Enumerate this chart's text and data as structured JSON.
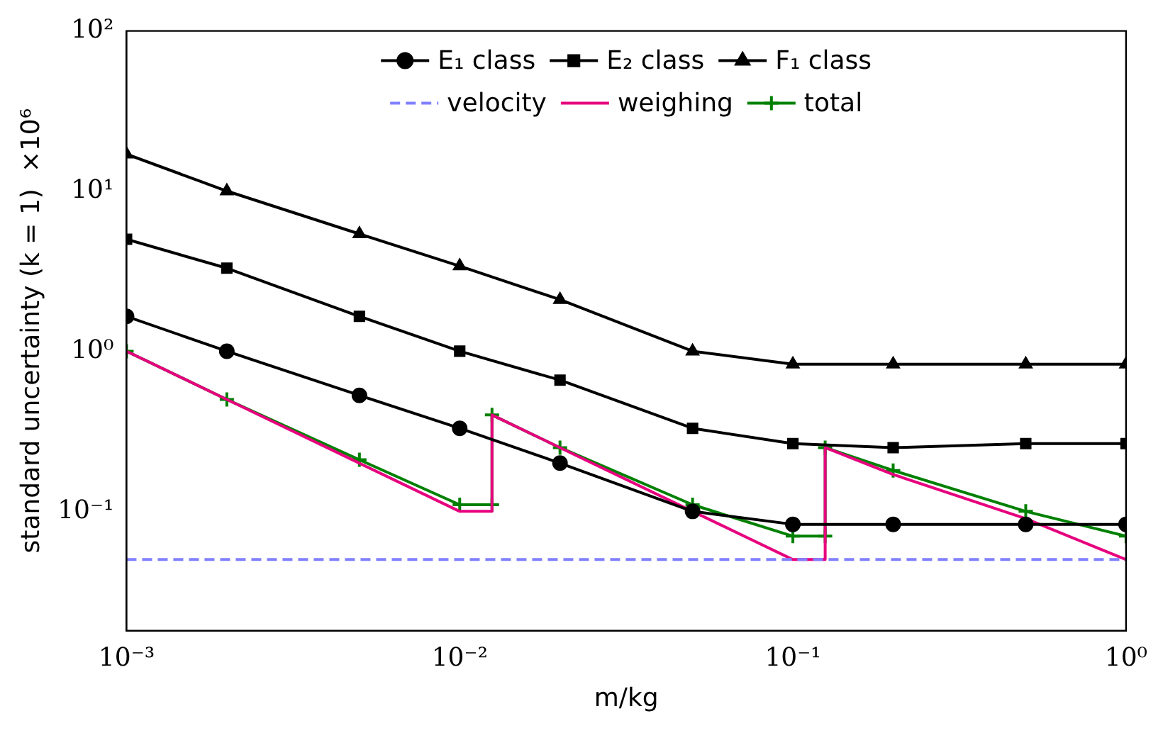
{
  "chart_data": {
    "type": "line",
    "xlabel": "m/kg",
    "ylabel": "standard uncertainty (k = 1)  ×10⁶",
    "log": "xy",
    "xlim": [
      0.001,
      1
    ],
    "ylim": [
      0.018,
      100
    ],
    "xticks": [
      {
        "value": 0.001,
        "label": "10⁻³"
      },
      {
        "value": 0.01,
        "label": "10⁻²"
      },
      {
        "value": 0.1,
        "label": "10⁻¹"
      },
      {
        "value": 1,
        "label": "10⁰"
      }
    ],
    "yticks": [
      {
        "value": 0.1,
        "label": "10⁻¹"
      },
      {
        "value": 1,
        "label": "10⁰"
      },
      {
        "value": 10,
        "label": "10¹"
      },
      {
        "value": 100,
        "label": "10²"
      }
    ],
    "grid": false,
    "legend": "top",
    "line_style": "solid",
    "series": [
      {
        "name": "E₁ class",
        "color": "#000000",
        "marker": "circle",
        "x": [
          0.001,
          0.002,
          0.005,
          0.01,
          0.02,
          0.05,
          0.1,
          0.2,
          0.5,
          1
        ],
        "values": [
          1.65,
          1.0,
          0.53,
          0.33,
          0.2,
          0.1,
          0.083,
          0.083,
          0.083,
          0.083
        ]
      },
      {
        "name": "E₂ class",
        "color": "#000000",
        "marker": "square",
        "x": [
          0.001,
          0.002,
          0.005,
          0.01,
          0.02,
          0.05,
          0.1,
          0.2,
          0.5,
          1
        ],
        "values": [
          5,
          3.3,
          1.65,
          1.0,
          0.66,
          0.33,
          0.265,
          0.25,
          0.265,
          0.265
        ]
      },
      {
        "name": "F₁ class",
        "color": "#000000",
        "marker": "triangle",
        "x": [
          0.001,
          0.002,
          0.005,
          0.01,
          0.02,
          0.05,
          0.1,
          0.2,
          0.5,
          1
        ],
        "values": [
          17,
          10,
          5.4,
          3.4,
          2.1,
          1.0,
          0.83,
          0.83,
          0.83,
          0.83
        ]
      },
      {
        "name": "velocity",
        "color": "#8080ff",
        "marker": "none",
        "line_style": "dashed",
        "x": [
          0.001,
          1
        ],
        "values": [
          0.05,
          0.05
        ]
      },
      {
        "name": "weighing",
        "color": "#e6007e",
        "marker": "none",
        "x": [
          0.001,
          0.002,
          0.005,
          0.01,
          0.0125,
          0.0125,
          0.02,
          0.05,
          0.1,
          0.125,
          0.125,
          0.2,
          0.5,
          1
        ],
        "values": [
          1.0,
          0.5,
          0.2,
          0.1,
          0.1,
          0.4,
          0.25,
          0.1,
          0.05,
          0.05,
          0.25,
          0.17,
          0.09,
          0.05
        ]
      },
      {
        "name": "total",
        "color": "#008000",
        "marker": "cross",
        "x": [
          0.001,
          0.002,
          0.005,
          0.01,
          0.0125,
          0.0125,
          0.02,
          0.05,
          0.1,
          0.125,
          0.125,
          0.2,
          0.5,
          1
        ],
        "values": [
          1.0,
          0.5,
          0.21,
          0.11,
          0.11,
          0.4,
          0.25,
          0.11,
          0.07,
          0.07,
          0.25,
          0.18,
          0.1,
          0.07
        ]
      }
    ]
  }
}
